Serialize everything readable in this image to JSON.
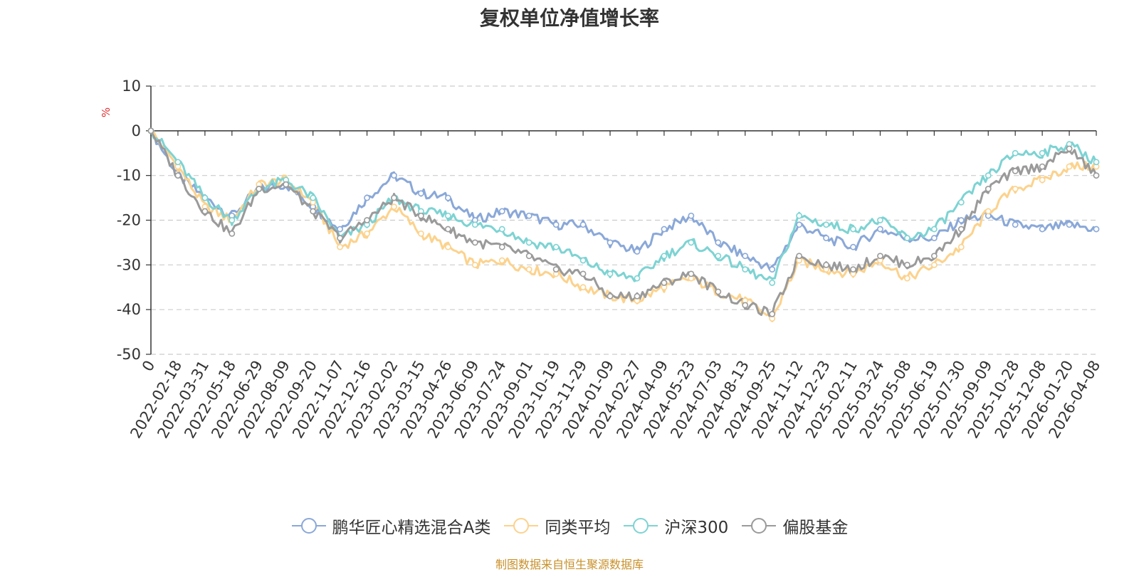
{
  "title": "复权单位净值增长率",
  "footer": "制图数据来自恒生聚源数据库",
  "y_unit": "%",
  "colors": {
    "fund": "#8aa8d8",
    "peer": "#fcd28c",
    "hs300": "#7dd3d3",
    "equity": "#9a9a9a",
    "unit": "#e03030",
    "grid": "#cccccc",
    "axis": "#333333"
  },
  "legend": [
    {
      "label": "鹏华匠心精选混合A类",
      "color": "#8aa8d8"
    },
    {
      "label": "同类平均",
      "color": "#fcd28c"
    },
    {
      "label": "沪深300",
      "color": "#7dd3d3"
    },
    {
      "label": "偏股基金",
      "color": "#9a9a9a"
    }
  ],
  "chart_data": {
    "type": "line",
    "title": "复权单位净值增长率",
    "ylabel": "%",
    "ylim": [
      -50,
      10
    ],
    "yticks": [
      10,
      0,
      -10,
      -20,
      -30,
      -40,
      -50
    ],
    "grid": true,
    "legend_position": "bottom",
    "categories": [
      "0",
      "2022-02-18",
      "2022-03-31",
      "2022-05-18",
      "2022-06-29",
      "2022-08-09",
      "2022-09-20",
      "2022-11-07",
      "2022-12-16",
      "2023-02-02",
      "2023-03-15",
      "2023-04-26",
      "2023-06-09",
      "2023-07-24",
      "2023-09-01",
      "2023-10-19",
      "2023-11-29",
      "2024-01-09",
      "2024-02-27",
      "2024-04-09",
      "2024-05-23",
      "2024-07-03",
      "2024-08-13",
      "2024-09-25",
      "2024-11-12",
      "2024-12-23",
      "2025-02-11",
      "2025-03-24",
      "2025-05-08",
      "2025-06-19",
      "2025-07-30",
      "2025-09-09",
      "2025-10-28",
      "2025-12-08",
      "2026-01-20",
      "2026-04-08"
    ],
    "series": [
      {
        "name": "鹏华匠心精选混合A类",
        "values": [
          0,
          -10,
          -15,
          -19,
          -13,
          -12,
          -17,
          -22,
          -15,
          -10,
          -14,
          -15,
          -20,
          -18,
          -19,
          -21,
          -21,
          -25,
          -27,
          -22,
          -19,
          -25,
          -28,
          -31,
          -21,
          -24,
          -26,
          -22,
          -24,
          -24,
          -20,
          -19,
          -21,
          -22,
          -21,
          -22
        ]
      },
      {
        "name": "同类平均",
        "values": [
          0,
          -8,
          -17,
          -20,
          -12,
          -11,
          -16,
          -26,
          -23,
          -17,
          -23,
          -26,
          -30,
          -29,
          -31,
          -32,
          -35,
          -37,
          -38,
          -35,
          -33,
          -36,
          -38,
          -42,
          -29,
          -31,
          -32,
          -29,
          -33,
          -30,
          -26,
          -18,
          -13,
          -11,
          -8,
          -8
        ]
      },
      {
        "name": "沪深300",
        "values": [
          0,
          -7,
          -15,
          -20,
          -13,
          -11,
          -15,
          -24,
          -21,
          -15,
          -18,
          -19,
          -21,
          -22,
          -25,
          -26,
          -29,
          -32,
          -33,
          -28,
          -25,
          -28,
          -31,
          -34,
          -19,
          -21,
          -22,
          -20,
          -24,
          -22,
          -16,
          -10,
          -5,
          -5,
          -3,
          -7
        ]
      },
      {
        "name": "偏股基金",
        "values": [
          0,
          -10,
          -18,
          -23,
          -13,
          -12,
          -18,
          -24,
          -20,
          -15,
          -19,
          -22,
          -25,
          -26,
          -28,
          -31,
          -32,
          -37,
          -37,
          -34,
          -32,
          -36,
          -39,
          -41,
          -28,
          -30,
          -31,
          -28,
          -30,
          -28,
          -22,
          -13,
          -9,
          -8,
          -4,
          -10
        ]
      }
    ]
  }
}
